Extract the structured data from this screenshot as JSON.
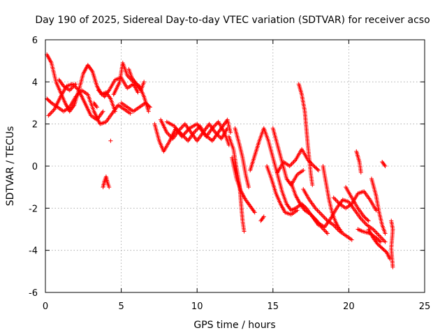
{
  "chart_data": {
    "type": "scatter",
    "title": "Day 190 of 2025, Sidereal Day-to-day VTEC variation (SDTVAR) for receiver acso",
    "xlabel": "GPS time / hours",
    "ylabel": "SDTVAR / TECUs",
    "xlim": [
      0,
      25
    ],
    "ylim": [
      -6,
      6
    ],
    "xticks": [
      "0",
      "5",
      "10",
      "15",
      "20",
      "25"
    ],
    "yticks": [
      "-6",
      "-4",
      "-2",
      "0",
      "2",
      "4",
      "6"
    ],
    "grid": true,
    "marker": "+",
    "colors": {
      "marker": "#ff0000",
      "grid": "#a0a0a0",
      "axis": "#000000",
      "background": "#ffffff"
    },
    "series": [
      {
        "name": "SDTVAR",
        "tracks": [
          [
            [
              0.1,
              5.3
            ],
            [
              0.4,
              4.9
            ],
            [
              0.7,
              4.0
            ],
            [
              1.0,
              3.5
            ],
            [
              1.3,
              3.0
            ],
            [
              1.6,
              2.6
            ],
            [
              1.9,
              2.9
            ],
            [
              2.2,
              3.6
            ],
            [
              2.5,
              4.4
            ],
            [
              2.8,
              4.8
            ],
            [
              3.1,
              4.5
            ],
            [
              3.4,
              3.8
            ],
            [
              3.7,
              3.4
            ],
            [
              4.0,
              3.5
            ],
            [
              4.3,
              3.2
            ],
            [
              4.6,
              2.6
            ]
          ],
          [
            [
              0.1,
              3.2
            ],
            [
              0.4,
              3.0
            ],
            [
              0.8,
              2.8
            ],
            [
              1.2,
              2.6
            ],
            [
              1.6,
              2.8
            ],
            [
              2.0,
              3.3
            ],
            [
              2.4,
              3.6
            ],
            [
              2.8,
              3.4
            ],
            [
              3.2,
              2.6
            ],
            [
              3.6,
              2.0
            ],
            [
              4.0,
              2.1
            ],
            [
              4.4,
              2.5
            ],
            [
              4.8,
              2.9
            ],
            [
              5.2,
              2.7
            ],
            [
              5.6,
              2.5
            ]
          ],
          [
            [
              0.2,
              2.4
            ],
            [
              0.6,
              2.7
            ],
            [
              1.0,
              3.3
            ],
            [
              1.4,
              3.8
            ],
            [
              1.8,
              3.9
            ],
            [
              2.2,
              3.6
            ],
            [
              2.6,
              3.0
            ],
            [
              3.0,
              2.4
            ],
            [
              3.4,
              2.2
            ],
            [
              3.8,
              2.6
            ]
          ],
          [
            [
              4.5,
              3.4
            ],
            [
              4.9,
              4.0
            ],
            [
              5.1,
              4.9
            ],
            [
              5.4,
              4.3
            ],
            [
              5.8,
              4.0
            ],
            [
              6.2,
              3.8
            ],
            [
              6.5,
              3.3
            ],
            [
              6.8,
              2.6
            ]
          ],
          [
            [
              5.0,
              3.0
            ],
            [
              5.4,
              2.8
            ],
            [
              5.8,
              2.6
            ],
            [
              6.2,
              2.8
            ],
            [
              6.6,
              3.0
            ],
            [
              6.9,
              2.8
            ]
          ],
          [
            [
              3.8,
              -1.0
            ],
            [
              3.9,
              -0.7
            ],
            [
              4.0,
              -0.5
            ],
            [
              4.1,
              -0.8
            ],
            [
              4.2,
              -1.0
            ]
          ],
          [
            [
              7.2,
              2.0
            ],
            [
              7.5,
              1.2
            ],
            [
              7.8,
              0.7
            ],
            [
              8.2,
              1.2
            ],
            [
              8.6,
              1.8
            ],
            [
              9.0,
              1.5
            ],
            [
              9.4,
              1.2
            ],
            [
              9.8,
              1.6
            ],
            [
              10.2,
              1.9
            ],
            [
              10.6,
              1.4
            ],
            [
              11.0,
              1.8
            ],
            [
              11.4,
              2.1
            ],
            [
              11.8,
              1.6
            ],
            [
              12.1,
              1.0
            ]
          ],
          [
            [
              7.6,
              2.2
            ],
            [
              8.0,
              1.6
            ],
            [
              8.4,
              1.3
            ],
            [
              8.8,
              1.7
            ],
            [
              9.2,
              2.0
            ],
            [
              9.6,
              1.6
            ],
            [
              10.0,
              1.2
            ],
            [
              10.4,
              1.6
            ],
            [
              10.8,
              2.0
            ],
            [
              11.2,
              1.6
            ],
            [
              11.6,
              1.3
            ],
            [
              12.0,
              1.8
            ]
          ],
          [
            [
              8.0,
              2.1
            ],
            [
              8.5,
              1.9
            ],
            [
              9.0,
              1.4
            ],
            [
              9.5,
              1.8
            ],
            [
              10.0,
              2.0
            ],
            [
              10.5,
              1.5
            ],
            [
              11.0,
              1.2
            ],
            [
              11.5,
              1.7
            ],
            [
              12.0,
              2.2
            ],
            [
              12.2,
              1.6
            ]
          ],
          [
            [
              12.1,
              1.4
            ],
            [
              12.4,
              0.8
            ],
            [
              12.6,
              -0.1
            ],
            [
              12.8,
              -0.9
            ],
            [
              12.9,
              -1.8
            ],
            [
              13.0,
              -2.6
            ],
            [
              13.1,
              -3.1
            ]
          ],
          [
            [
              12.3,
              0.4
            ],
            [
              12.6,
              -0.6
            ],
            [
              12.9,
              -1.2
            ],
            [
              13.2,
              -1.6
            ],
            [
              13.5,
              -1.9
            ],
            [
              13.8,
              -2.2
            ]
          ],
          [
            [
              12.5,
              1.8
            ],
            [
              12.8,
              1.0
            ],
            [
              13.0,
              0.4
            ],
            [
              13.2,
              -0.4
            ],
            [
              13.4,
              -1.0
            ]
          ],
          [
            [
              13.5,
              -0.2
            ],
            [
              13.8,
              0.5
            ],
            [
              14.1,
              1.2
            ],
            [
              14.4,
              1.8
            ],
            [
              14.7,
              1.2
            ],
            [
              15.0,
              0.4
            ],
            [
              15.3,
              -0.4
            ],
            [
              15.6,
              -1.2
            ],
            [
              15.9,
              -1.8
            ],
            [
              16.2,
              -2.1
            ],
            [
              16.5,
              -2.0
            ],
            [
              16.9,
              -1.8
            ],
            [
              17.2,
              -2.0
            ],
            [
              17.6,
              -2.4
            ],
            [
              18.0,
              -2.8
            ]
          ],
          [
            [
              14.2,
              -2.6
            ],
            [
              14.4,
              -2.4
            ]
          ],
          [
            [
              14.6,
              0.0
            ],
            [
              14.9,
              -0.6
            ],
            [
              15.2,
              -1.3
            ],
            [
              15.5,
              -1.8
            ],
            [
              15.8,
              -2.2
            ],
            [
              16.2,
              -2.3
            ],
            [
              16.6,
              -2.1
            ]
          ],
          [
            [
              15.0,
              1.8
            ],
            [
              15.3,
              1.0
            ],
            [
              15.6,
              0.2
            ],
            [
              15.9,
              -0.6
            ],
            [
              16.2,
              -0.9
            ],
            [
              16.6,
              -0.4
            ],
            [
              17.0,
              -0.2
            ]
          ],
          [
            [
              15.3,
              -0.3
            ],
            [
              15.7,
              0.2
            ],
            [
              16.1,
              0.0
            ],
            [
              16.5,
              0.3
            ],
            [
              16.9,
              0.8
            ],
            [
              17.3,
              0.3
            ],
            [
              17.7,
              0.0
            ],
            [
              18.0,
              -0.2
            ]
          ],
          [
            [
              16.7,
              3.9
            ],
            [
              16.9,
              3.4
            ],
            [
              17.1,
              2.6
            ],
            [
              17.2,
              1.8
            ],
            [
              17.3,
              1.0
            ],
            [
              17.4,
              0.3
            ],
            [
              17.5,
              -0.4
            ],
            [
              17.6,
              -0.9
            ]
          ],
          [
            [
              17.0,
              -1.1
            ],
            [
              17.4,
              -1.6
            ],
            [
              17.8,
              -2.0
            ],
            [
              18.2,
              -2.3
            ],
            [
              18.6,
              -2.6
            ],
            [
              19.0,
              -2.8
            ],
            [
              19.4,
              -3.1
            ],
            [
              19.8,
              -3.3
            ],
            [
              20.2,
              -3.5
            ]
          ],
          [
            [
              17.6,
              -2.4
            ],
            [
              18.0,
              -2.7
            ],
            [
              18.4,
              -2.9
            ],
            [
              18.8,
              -2.5
            ],
            [
              19.2,
              -2.0
            ],
            [
              19.6,
              -1.6
            ],
            [
              20.0,
              -1.7
            ],
            [
              20.4,
              -2.1
            ],
            [
              20.8,
              -2.5
            ],
            [
              21.2,
              -2.8
            ],
            [
              21.6,
              -3.0
            ],
            [
              22.0,
              -3.3
            ],
            [
              22.4,
              -3.6
            ]
          ],
          [
            [
              18.3,
              0.0
            ],
            [
              18.5,
              -0.8
            ],
            [
              18.7,
              -1.6
            ],
            [
              18.9,
              -2.2
            ],
            [
              19.1,
              -2.6
            ],
            [
              19.3,
              -2.9
            ],
            [
              19.5,
              -3.1
            ]
          ],
          [
            [
              19.0,
              -1.5
            ],
            [
              19.4,
              -1.8
            ],
            [
              19.8,
              -2.0
            ],
            [
              20.2,
              -1.8
            ],
            [
              20.6,
              -1.3
            ],
            [
              21.0,
              -1.2
            ],
            [
              21.4,
              -1.6
            ],
            [
              21.8,
              -2.1
            ]
          ],
          [
            [
              20.5,
              0.7
            ],
            [
              20.7,
              0.2
            ],
            [
              20.8,
              -0.3
            ]
          ],
          [
            [
              21.5,
              -0.6
            ],
            [
              21.8,
              -1.4
            ],
            [
              22.0,
              -2.2
            ],
            [
              22.2,
              -2.8
            ],
            [
              22.4,
              -3.2
            ]
          ],
          [
            [
              21.3,
              -3.0
            ],
            [
              21.6,
              -3.4
            ],
            [
              21.9,
              -3.7
            ],
            [
              22.2,
              -3.9
            ],
            [
              22.5,
              -4.1
            ],
            [
              22.7,
              -4.4
            ]
          ],
          [
            [
              22.2,
              0.2
            ],
            [
              22.4,
              0.0
            ]
          ],
          [
            [
              22.8,
              -2.6
            ],
            [
              22.9,
              -3.0
            ],
            [
              22.8,
              -3.9
            ],
            [
              22.9,
              -4.8
            ]
          ],
          [
            [
              3.2,
              3.0
            ],
            [
              3.4,
              2.8
            ]
          ],
          [
            [
              0.9,
              4.1
            ],
            [
              1.2,
              3.8
            ],
            [
              1.6,
              3.6
            ],
            [
              2.0,
              3.9
            ]
          ],
          [
            [
              3.5,
              3.6
            ],
            [
              3.9,
              3.3
            ],
            [
              4.2,
              3.6
            ],
            [
              4.6,
              4.1
            ],
            [
              5.0,
              4.2
            ],
            [
              5.4,
              3.7
            ],
            [
              5.8,
              3.9
            ],
            [
              6.1,
              3.5
            ]
          ],
          [
            [
              4.3,
              1.2
            ]
          ],
          [
            [
              5.5,
              4.6
            ],
            [
              5.7,
              4.2
            ],
            [
              6.3,
              3.6
            ],
            [
              6.5,
              4.0
            ]
          ],
          [
            [
              19.8,
              -1.0
            ],
            [
              20.2,
              -1.5
            ],
            [
              20.6,
              -2.0
            ],
            [
              21.0,
              -2.4
            ],
            [
              21.3,
              -2.6
            ]
          ],
          [
            [
              16.2,
              -0.8
            ],
            [
              16.5,
              -1.4
            ],
            [
              16.8,
              -1.8
            ],
            [
              17.1,
              -2.1
            ],
            [
              17.5,
              -2.3
            ],
            [
              17.9,
              -2.6
            ],
            [
              18.2,
              -2.9
            ],
            [
              18.6,
              -3.2
            ]
          ],
          [
            [
              20.6,
              -3.0
            ],
            [
              20.9,
              -3.1
            ],
            [
              21.4,
              -3.2
            ],
            [
              21.8,
              -3.4
            ],
            [
              22.1,
              -3.6
            ]
          ]
        ]
      }
    ]
  }
}
